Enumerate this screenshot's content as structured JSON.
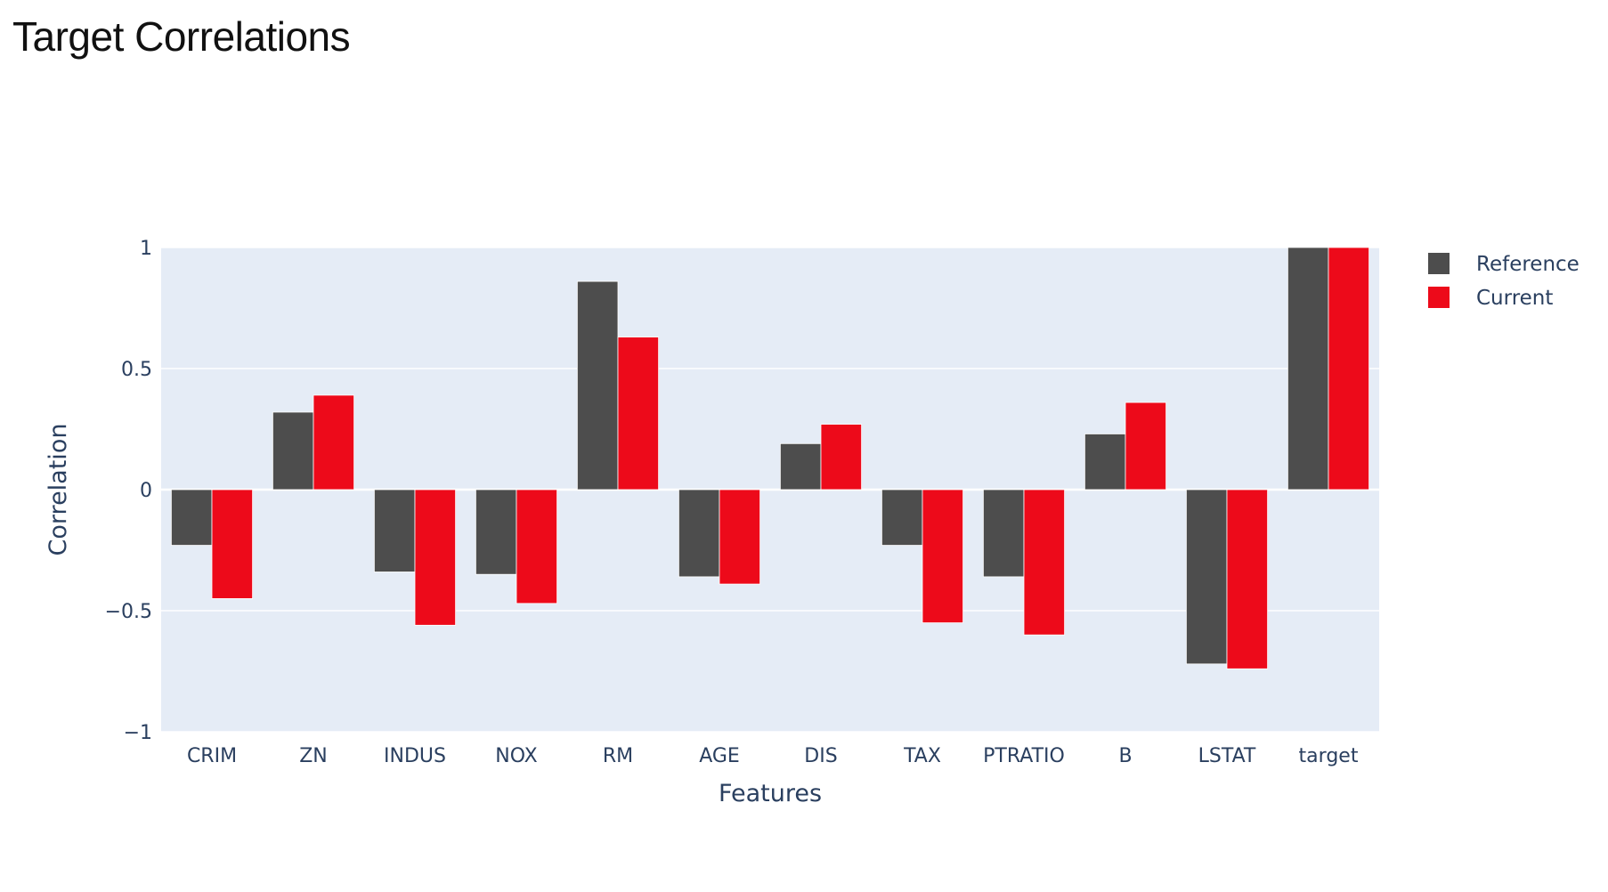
{
  "page": {
    "title": "Target Correlations"
  },
  "chart_data": {
    "type": "bar",
    "title": "Target Correlations",
    "xlabel": "Features",
    "ylabel": "Correlation",
    "ylim": [
      -1,
      1
    ],
    "yticks": [
      1,
      0.5,
      0,
      -0.5,
      -1
    ],
    "ytick_labels": [
      "1",
      "0.5",
      "0",
      "−0.5",
      "−1"
    ],
    "grid": true,
    "legend_position": "top-right",
    "plot_background": "#e5ecf6",
    "categories": [
      "CRIM",
      "ZN",
      "INDUS",
      "NOX",
      "RM",
      "AGE",
      "DIS",
      "TAX",
      "PTRATIO",
      "B",
      "LSTAT",
      "target"
    ],
    "series": [
      {
        "name": "Reference",
        "color": "#4d4d4d",
        "values": [
          -0.23,
          0.32,
          -0.34,
          -0.35,
          0.86,
          -0.36,
          0.19,
          -0.23,
          -0.36,
          0.23,
          -0.72,
          1.0
        ]
      },
      {
        "name": "Current",
        "color": "#ed0a1a",
        "values": [
          -0.45,
          0.39,
          -0.56,
          -0.47,
          0.63,
          -0.39,
          0.27,
          -0.55,
          -0.6,
          0.36,
          -0.74,
          1.0
        ]
      }
    ]
  }
}
